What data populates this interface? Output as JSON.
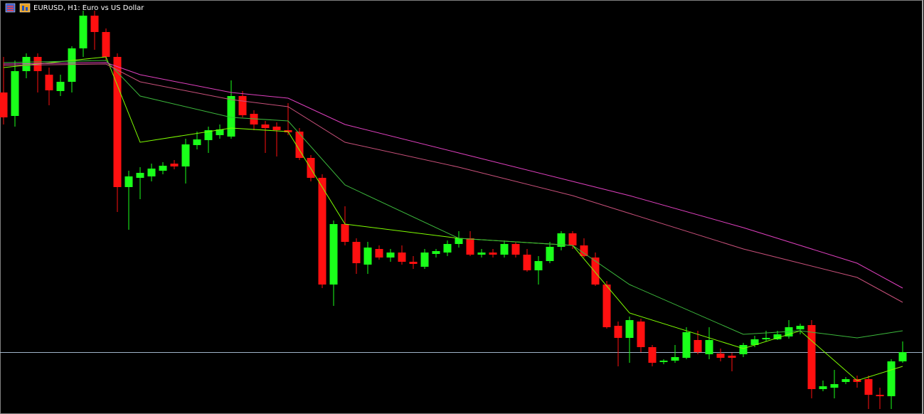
{
  "chart_data": {
    "type": "candlestick",
    "title": "EURUSD, H1:  Euro vs US Dollar",
    "ylim": [
      418,
      1000
    ],
    "up_color": "#1aff1a",
    "down_color": "#ff1010",
    "open": [
      870,
      837,
      900,
      920,
      895,
      872,
      885,
      932,
      978,
      955,
      920,
      737,
      750,
      752,
      760,
      770,
      766,
      796,
      803,
      810,
      808,
      865,
      840,
      825,
      822,
      817,
      815,
      778,
      750,
      600,
      685,
      660,
      628,
      650,
      638,
      645,
      632,
      625,
      643,
      645,
      657,
      665,
      642,
      645,
      642,
      657,
      642,
      620,
      633,
      653,
      672,
      655,
      638,
      600,
      542,
      525,
      548,
      512,
      491,
      493,
      497,
      522,
      502,
      503,
      500,
      502,
      515,
      523,
      523,
      527,
      537,
      543,
      453,
      455,
      463,
      467,
      467,
      445,
      443,
      492
    ],
    "high": [
      920,
      915,
      925,
      925,
      905,
      895,
      935,
      985,
      985,
      960,
      925,
      760,
      765,
      770,
      772,
      775,
      805,
      815,
      822,
      825,
      887,
      872,
      845,
      830,
      828,
      855,
      820,
      782,
      755,
      690,
      710,
      665,
      660,
      655,
      650,
      655,
      640,
      650,
      650,
      662,
      675,
      675,
      650,
      650,
      662,
      660,
      650,
      640,
      660,
      675,
      675,
      665,
      645,
      605,
      548,
      555,
      552,
      515,
      495,
      515,
      540,
      535,
      540,
      510,
      504,
      518,
      528,
      535,
      535,
      550,
      545,
      550,
      465,
      480,
      470,
      472,
      472,
      455,
      495,
      520
    ],
    "low": [
      825,
      822,
      890,
      870,
      852,
      865,
      870,
      920,
      930,
      915,
      702,
      677,
      720,
      745,
      755,
      762,
      742,
      790,
      785,
      805,
      805,
      835,
      817,
      785,
      780,
      810,
      775,
      745,
      595,
      570,
      655,
      615,
      615,
      635,
      632,
      628,
      622,
      622,
      638,
      640,
      652,
      640,
      638,
      638,
      638,
      638,
      618,
      600,
      630,
      648,
      650,
      638,
      598,
      538,
      485,
      490,
      505,
      485,
      488,
      490,
      495,
      502,
      495,
      492,
      478,
      498,
      512,
      520,
      522,
      524,
      530,
      440,
      450,
      440,
      460,
      455,
      425,
      425,
      425,
      490
    ],
    "close": [
      835,
      900,
      920,
      900,
      873,
      885,
      932,
      978,
      955,
      920,
      737,
      752,
      757,
      763,
      767,
      766,
      797,
      804,
      817,
      818,
      865,
      838,
      825,
      820,
      817,
      814,
      778,
      750,
      600,
      685,
      660,
      630,
      652,
      638,
      645,
      632,
      629,
      645,
      647,
      657,
      665,
      642,
      645,
      642,
      657,
      642,
      620,
      633,
      653,
      672,
      655,
      640,
      600,
      540,
      525,
      550,
      512,
      490,
      493,
      498,
      533,
      505,
      522,
      497,
      497,
      515,
      523,
      525,
      530,
      540,
      542,
      453,
      457,
      460,
      467,
      463,
      445,
      443,
      492,
      505
    ],
    "price_line": 505,
    "price_line_color": "#9fb4c8",
    "series": [
      {
        "color": "#7fff00",
        "x": [
          0,
          9,
          12,
          20,
          25,
          30,
          40,
          50,
          55,
          65,
          70,
          75,
          79
        ],
        "values": [
          905,
          920,
          800,
          820,
          815,
          685,
          665,
          655,
          560,
          510,
          535,
          465,
          485
        ]
      },
      {
        "color": "#3cb83c",
        "x": [
          0,
          9,
          12,
          20,
          25,
          30,
          40,
          50,
          55,
          65,
          70,
          75,
          79
        ],
        "values": [
          912,
          915,
          865,
          835,
          830,
          740,
          665,
          655,
          600,
          530,
          535,
          525,
          535
        ]
      },
      {
        "color": "#c8507a",
        "x": [
          0,
          9,
          12,
          20,
          25,
          30,
          40,
          50,
          55,
          65,
          70,
          75,
          79
        ],
        "values": [
          908,
          910,
          885,
          860,
          850,
          800,
          765,
          725,
          700,
          650,
          630,
          610,
          575
        ]
      },
      {
        "color": "#e040c0",
        "x": [
          0,
          9,
          12,
          20,
          25,
          30,
          40,
          50,
          55,
          65,
          70,
          75,
          79
        ],
        "values": [
          910,
          912,
          895,
          870,
          862,
          825,
          785,
          745,
          725,
          680,
          655,
          630,
          595
        ]
      }
    ]
  }
}
